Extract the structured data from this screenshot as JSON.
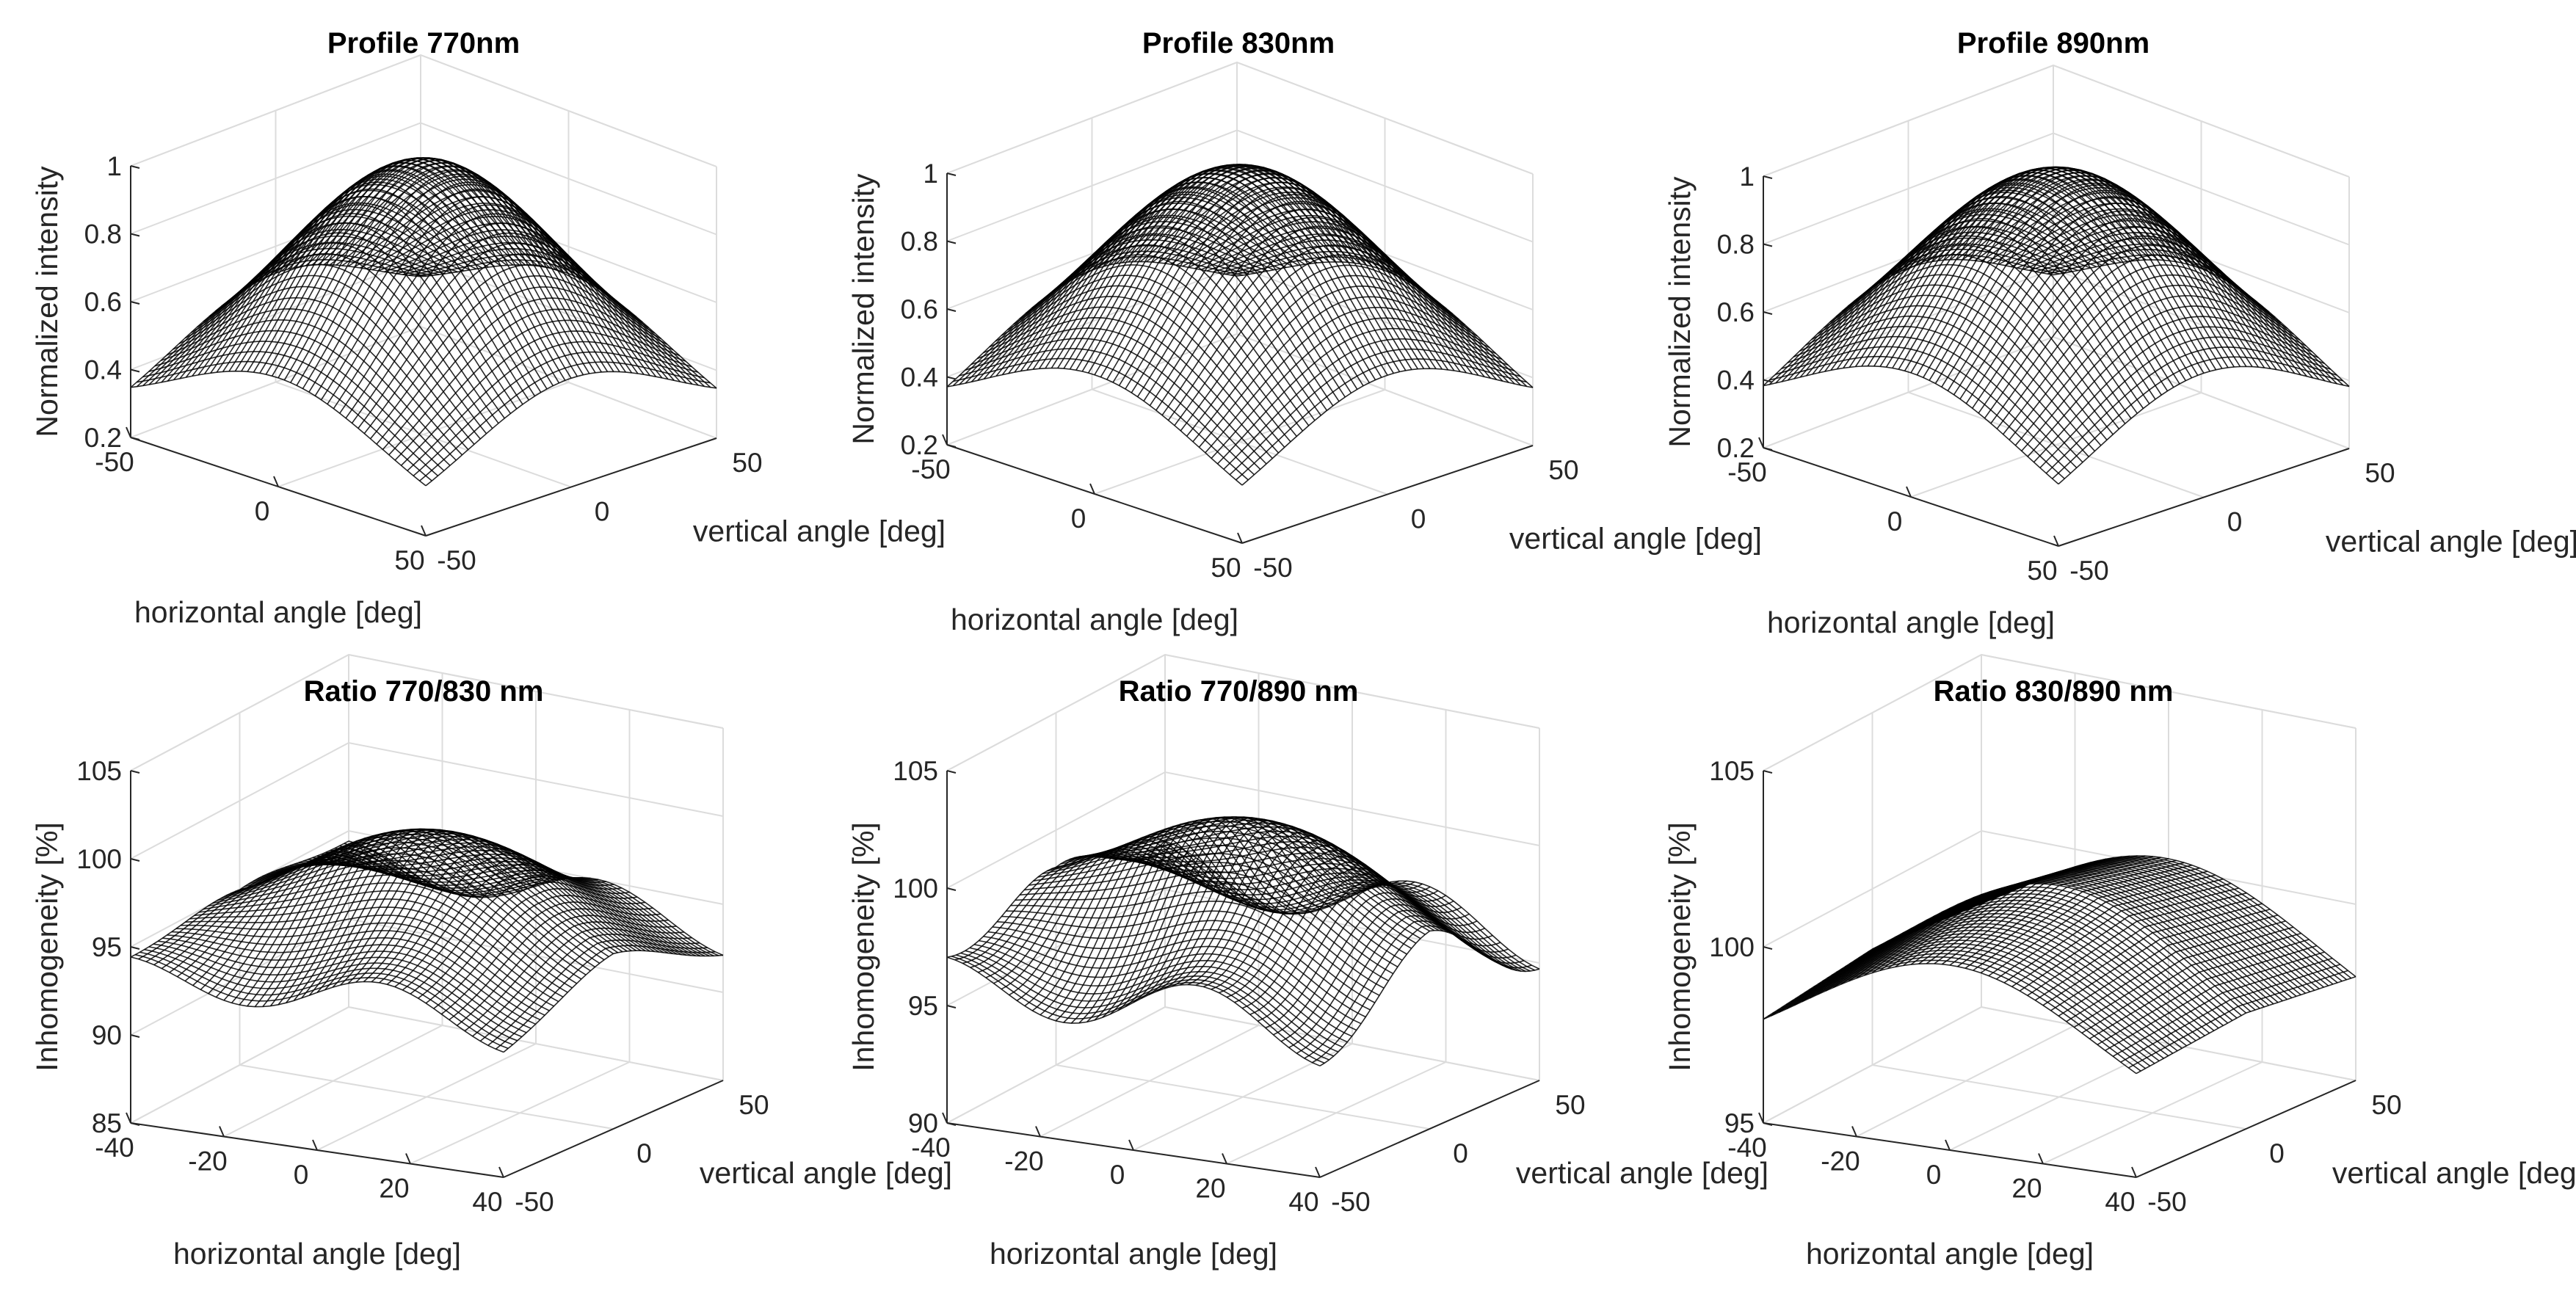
{
  "chart_data": [
    {
      "type": "surface",
      "title": "Profile 770nm",
      "xlabel": "horizontal angle [deg]",
      "ylabel": "vertical angle [deg]",
      "zlabel": "Normalized intensity",
      "xlim": [
        -50,
        50
      ],
      "ylim": [
        -50,
        50
      ],
      "zlim": [
        0.2,
        1
      ],
      "xticks": [
        -50,
        0,
        50
      ],
      "yticks": [
        -50,
        0,
        50
      ],
      "zticks": [
        "0.2",
        "0.4",
        "0.6",
        "0.8",
        "1"
      ],
      "surface": {
        "kind": "gaussian",
        "peak": 1.0,
        "sigma": 35,
        "corner_min": 0.25,
        "note": "peak at (0,0)"
      }
    },
    {
      "type": "surface",
      "title": "Profile 830nm",
      "xlabel": "horizontal angle [deg]",
      "ylabel": "vertical angle [deg]",
      "zlabel": "Normalized intensity",
      "xlim": [
        -50,
        50
      ],
      "ylim": [
        -50,
        50
      ],
      "zlim": [
        0.2,
        1
      ],
      "xticks": [
        -50,
        0,
        50
      ],
      "yticks": [
        -50,
        0,
        50
      ],
      "zticks": [
        "0.2",
        "0.4",
        "0.6",
        "0.8",
        "1"
      ],
      "surface": {
        "kind": "gaussian",
        "peak": 1.0,
        "sigma": 37,
        "corner_min": 0.25,
        "note": "peak at (0,0)"
      }
    },
    {
      "type": "surface",
      "title": "Profile 890nm",
      "xlabel": "horizontal angle [deg]",
      "ylabel": "vertical angle [deg]",
      "zlabel": "Normalized intensity",
      "xlim": [
        -50,
        50
      ],
      "ylim": [
        -50,
        50
      ],
      "zlim": [
        0.2,
        1
      ],
      "xticks": [
        -50,
        0,
        50
      ],
      "yticks": [
        -50,
        0,
        50
      ],
      "zticks": [
        "0.2",
        "0.4",
        "0.6",
        "0.8",
        "1"
      ],
      "surface": {
        "kind": "gaussian",
        "peak": 1.0,
        "sigma": 38,
        "corner_min": 0.25,
        "note": "peak at (0,0)"
      }
    },
    {
      "type": "surface",
      "title": "Ratio 770/830 nm",
      "xlabel": "horizontal angle [deg]",
      "ylabel": "vertical angle [deg]",
      "zlabel": "Inhomogeneity [%]",
      "xlim": [
        -40,
        40
      ],
      "ylim": [
        -50,
        50
      ],
      "zlim": [
        85,
        105
      ],
      "xticks": [
        -40,
        -20,
        0,
        20,
        40
      ],
      "yticks": [
        -50,
        0,
        50
      ],
      "zticks": [
        "85",
        "90",
        "95",
        "100",
        "105"
      ],
      "surface": {
        "kind": "ratio",
        "base": 93,
        "amp": 7,
        "sigma": 25,
        "tilt": 0.0,
        "note": "bump ~100 at center, edges ~93"
      }
    },
    {
      "type": "surface",
      "title": "Ratio 770/890 nm",
      "xlabel": "horizontal angle [deg]",
      "ylabel": "vertical angle [deg]",
      "zlabel": "Inhomogeneity [%]",
      "xlim": [
        -40,
        40
      ],
      "ylim": [
        -50,
        50
      ],
      "zlim": [
        90,
        105
      ],
      "xticks": [
        -40,
        -20,
        0,
        20,
        40
      ],
      "yticks": [
        -50,
        0,
        50
      ],
      "zticks": [
        "90",
        "95",
        "100",
        "105"
      ],
      "surface": {
        "kind": "ratio",
        "base": 96.5,
        "amp": 4.5,
        "sigma": 24,
        "tilt": 0.02,
        "note": "bump ~101 at center, wavy edges ~96"
      }
    },
    {
      "type": "surface",
      "title": "Ratio 830/890 nm",
      "xlabel": "horizontal angle [deg]",
      "ylabel": "vertical angle [deg]",
      "zlabel": "Inhomogeneity [%]",
      "xlim": [
        -40,
        40
      ],
      "ylim": [
        -50,
        50
      ],
      "zlim": [
        95,
        105
      ],
      "xticks": [
        -40,
        -20,
        0,
        20,
        40
      ],
      "yticks": [
        -50,
        0,
        50
      ],
      "zticks": [
        "95",
        "100",
        "105"
      ],
      "surface": {
        "kind": "ridge",
        "base": 96,
        "amp": 5,
        "sigma": 32,
        "note": "broad arch up to ~101, spans 95-101"
      }
    }
  ]
}
